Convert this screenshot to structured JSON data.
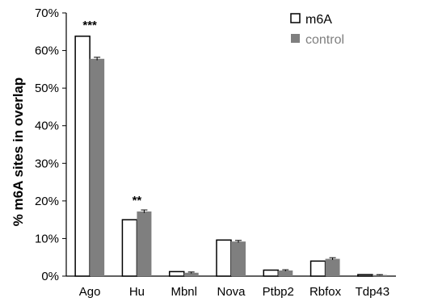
{
  "chart_data": {
    "type": "bar",
    "title": "",
    "xlabel": "",
    "ylabel": "% m6A sites in overlap",
    "ylim": [
      0,
      70
    ],
    "yticks": [
      "0%",
      "10%",
      "20%",
      "30%",
      "40%",
      "50%",
      "60%",
      "70%"
    ],
    "categories": [
      "Ago",
      "Hu",
      "Mbnl",
      "Nova",
      "Ptbp2",
      "Rbfox",
      "Tdp43"
    ],
    "series": [
      {
        "name": "m6A",
        "values": [
          63.8,
          15.0,
          1.2,
          9.6,
          1.6,
          4.0,
          0.4
        ],
        "errors": [
          0,
          0,
          0,
          0,
          0,
          0,
          0
        ]
      },
      {
        "name": "control",
        "values": [
          57.8,
          17.2,
          0.9,
          9.2,
          1.5,
          4.6,
          0.3
        ],
        "errors": [
          0.4,
          0.4,
          0.2,
          0.3,
          0.2,
          0.3,
          0.1
        ]
      }
    ],
    "annotations": [
      "***",
      "**"
    ],
    "legend_position": "top-right",
    "colors": {
      "m6A_fill": "#ffffff",
      "m6A_stroke": "#000000",
      "control_fill": "#7f7f7f",
      "control_text": "#7f7f7f",
      "axis": "#000000"
    },
    "grid": false
  }
}
